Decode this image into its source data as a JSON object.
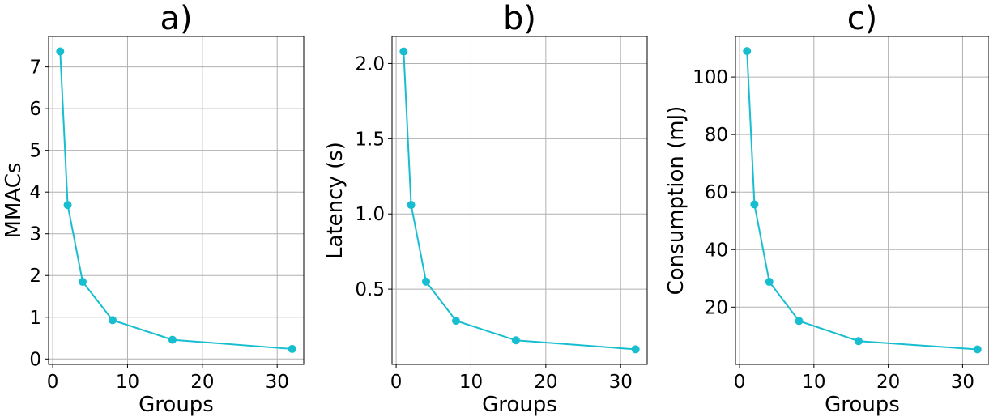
{
  "chart_data": [
    {
      "type": "line",
      "title": "a)",
      "xlabel": "Groups",
      "ylabel": "MMACs",
      "x": [
        1,
        2,
        4,
        8,
        16,
        32
      ],
      "series": [
        {
          "values": [
            7.37,
            3.69,
            1.85,
            0.93,
            0.46,
            0.24
          ]
        }
      ],
      "xlim": [
        -0.55,
        33.55
      ],
      "ylim": [
        -0.13,
        7.73
      ],
      "xticks": [
        0,
        10,
        20,
        30
      ],
      "xticklabels": [
        "0",
        "10",
        "20",
        "30"
      ],
      "yticks": [
        0,
        1,
        2,
        3,
        4,
        5,
        6,
        7
      ],
      "yticklabels": [
        "0",
        "1",
        "2",
        "3",
        "4",
        "5",
        "6",
        "7"
      ],
      "grid": true,
      "color": "#17becf"
    },
    {
      "type": "line",
      "title": "b)",
      "xlabel": "Groups",
      "ylabel": "Latency (s)",
      "x": [
        1,
        2,
        4,
        8,
        16,
        32
      ],
      "series": [
        {
          "values": [
            2.08,
            1.06,
            0.55,
            0.29,
            0.16,
            0.1
          ]
        }
      ],
      "xlim": [
        -0.55,
        33.55
      ],
      "ylim": [
        0.0,
        2.18
      ],
      "xticks": [
        0,
        10,
        20,
        30
      ],
      "xticklabels": [
        "0",
        "10",
        "20",
        "30"
      ],
      "yticks": [
        0.5,
        1.0,
        1.5,
        2.0
      ],
      "yticklabels": [
        "0.5",
        "1.0",
        "1.5",
        "2.0"
      ],
      "grid": true,
      "color": "#17becf"
    },
    {
      "type": "line",
      "title": "c)",
      "xlabel": "Groups",
      "ylabel": "Consumption (mJ)",
      "x": [
        1,
        2,
        4,
        8,
        16,
        32
      ],
      "series": [
        {
          "values": [
            109,
            55.7,
            28.8,
            15.2,
            8.2,
            5.3
          ]
        }
      ],
      "xlim": [
        -0.55,
        33.55
      ],
      "ylim": [
        0.1,
        114.1
      ],
      "xticks": [
        0,
        10,
        20,
        30
      ],
      "xticklabels": [
        "0",
        "10",
        "20",
        "30"
      ],
      "yticks": [
        20,
        40,
        60,
        80,
        100
      ],
      "yticklabels": [
        "20",
        "40",
        "60",
        "80",
        "100"
      ],
      "grid": true,
      "color": "#17becf"
    }
  ]
}
